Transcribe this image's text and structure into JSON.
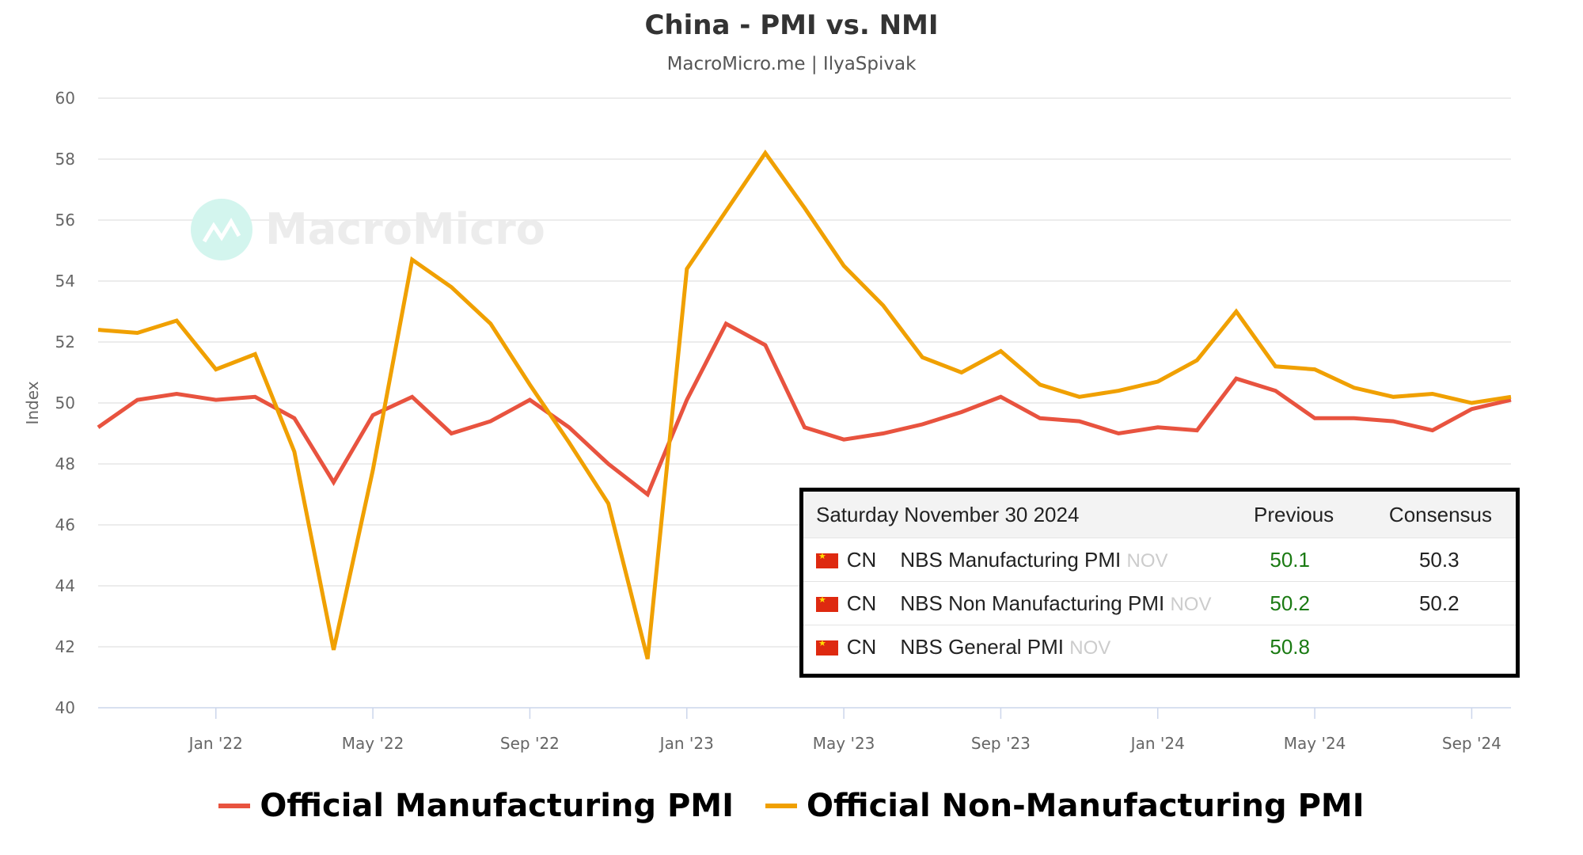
{
  "chart_data": {
    "type": "line",
    "title": "China - PMI vs. NMI",
    "subtitle": "MacroMicro.me | IlyaSpivak",
    "watermark": "MacroMicro",
    "ylabel": "Index",
    "ylim": [
      40,
      60
    ],
    "yticks": [
      40,
      42,
      44,
      46,
      48,
      50,
      52,
      54,
      56,
      58,
      60
    ],
    "grid": true,
    "legend_position": "bottom",
    "x": [
      "2021-10",
      "2021-11",
      "2021-12",
      "2022-01",
      "2022-02",
      "2022-03",
      "2022-04",
      "2022-05",
      "2022-06",
      "2022-07",
      "2022-08",
      "2022-09",
      "2022-10",
      "2022-11",
      "2022-12",
      "2023-01",
      "2023-02",
      "2023-03",
      "2023-04",
      "2023-05",
      "2023-06",
      "2023-07",
      "2023-08",
      "2023-09",
      "2023-10",
      "2023-11",
      "2023-12",
      "2024-01",
      "2024-02",
      "2024-03",
      "2024-04",
      "2024-05",
      "2024-06",
      "2024-07",
      "2024-08",
      "2024-09",
      "2024-10"
    ],
    "xticks": [
      {
        "x": "2022-01",
        "label": "Jan '22"
      },
      {
        "x": "2022-05",
        "label": "May '22"
      },
      {
        "x": "2022-09",
        "label": "Sep '22"
      },
      {
        "x": "2023-01",
        "label": "Jan '23"
      },
      {
        "x": "2023-05",
        "label": "May '23"
      },
      {
        "x": "2023-09",
        "label": "Sep '23"
      },
      {
        "x": "2024-01",
        "label": "Jan '24"
      },
      {
        "x": "2024-05",
        "label": "May '24"
      },
      {
        "x": "2024-09",
        "label": "Sep '24"
      }
    ],
    "series": [
      {
        "name": "Official Manufacturing PMI",
        "color": "#e8533f",
        "values": [
          49.2,
          50.1,
          50.3,
          50.1,
          50.2,
          49.5,
          47.4,
          49.6,
          50.2,
          49.0,
          49.4,
          50.1,
          49.2,
          48.0,
          47.0,
          50.1,
          52.6,
          51.9,
          49.2,
          48.8,
          49.0,
          49.3,
          49.7,
          50.2,
          49.5,
          49.4,
          49.0,
          49.2,
          49.1,
          50.8,
          50.4,
          49.5,
          49.5,
          49.4,
          49.1,
          49.8,
          50.1
        ]
      },
      {
        "name": "Official Non-Manufacturing PMI",
        "color": "#f0a000",
        "values": [
          52.4,
          52.3,
          52.7,
          51.1,
          51.6,
          48.4,
          41.9,
          47.8,
          54.7,
          53.8,
          52.6,
          50.6,
          48.7,
          46.7,
          41.6,
          54.4,
          56.3,
          58.2,
          56.4,
          54.5,
          53.2,
          51.5,
          51.0,
          51.7,
          50.6,
          50.2,
          50.4,
          50.7,
          51.4,
          53.0,
          51.2,
          51.1,
          50.5,
          50.2,
          50.3,
          50.0,
          50.2
        ]
      }
    ]
  },
  "calendar": {
    "date": "Saturday November 30 2024",
    "previous_header": "Previous",
    "consensus_header": "Consensus",
    "rows": [
      {
        "country": "CN",
        "name": "NBS Manufacturing PMI",
        "period": "NOV",
        "previous": "50.1",
        "consensus": "50.3"
      },
      {
        "country": "CN",
        "name": "NBS Non Manufacturing PMI",
        "period": "NOV",
        "previous": "50.2",
        "consensus": "50.2"
      },
      {
        "country": "CN",
        "name": "NBS General PMI",
        "period": "NOV",
        "previous": "50.8",
        "consensus": ""
      }
    ],
    "previous_color": "#1a7a12"
  }
}
